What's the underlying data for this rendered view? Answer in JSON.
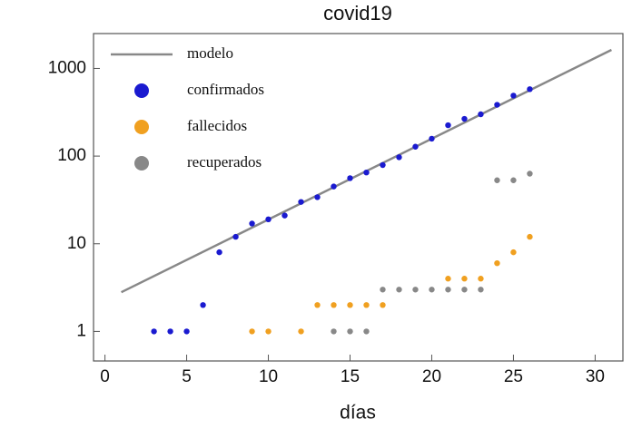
{
  "chart_data": {
    "type": "scatter",
    "title": "covid19",
    "x_label": "días",
    "log_y": true,
    "legend": "upper left",
    "xlim": [
      -0.7,
      31.7
    ],
    "xticks": [
      0,
      5,
      10,
      15,
      20,
      25,
      30
    ],
    "ylim": [
      0.46,
      2500
    ],
    "yticks": [
      1,
      10,
      100,
      1000
    ],
    "series": [
      {
        "name": "modelo",
        "color": "#888888",
        "style": "line",
        "x": [
          1,
          31
        ],
        "values": [
          2.8,
          1630
        ]
      },
      {
        "name": "confirmados",
        "color": "#1a1ad0",
        "style": "marker",
        "x": [
          3,
          4,
          5,
          6,
          7,
          8,
          9,
          10,
          11,
          12,
          13,
          14,
          15,
          16,
          17,
          18,
          19,
          20,
          21,
          22,
          23,
          24,
          25,
          26
        ],
        "values": [
          1,
          1,
          1,
          2,
          8,
          12,
          17,
          19,
          21,
          30,
          34,
          45,
          56,
          65,
          79,
          97,
          128,
          158,
          225,
          266,
          300,
          385,
          490,
          580
        ]
      },
      {
        "name": "fallecidos",
        "color": "#f0a020",
        "style": "marker",
        "x": [
          9,
          10,
          12,
          13,
          14,
          15,
          16,
          17,
          21,
          22,
          23,
          24,
          25,
          26
        ],
        "values": [
          1,
          1,
          1,
          2,
          2,
          2,
          2,
          2,
          4,
          4,
          4,
          6,
          8,
          12
        ]
      },
      {
        "name": "recuperados",
        "color": "#888888",
        "style": "marker",
        "x": [
          14,
          15,
          16,
          17,
          18,
          19,
          20,
          21,
          22,
          23,
          24,
          25,
          26
        ],
        "values": [
          1,
          1,
          1,
          3,
          3,
          3,
          3,
          3,
          3,
          3,
          53,
          53,
          63
        ]
      }
    ]
  }
}
